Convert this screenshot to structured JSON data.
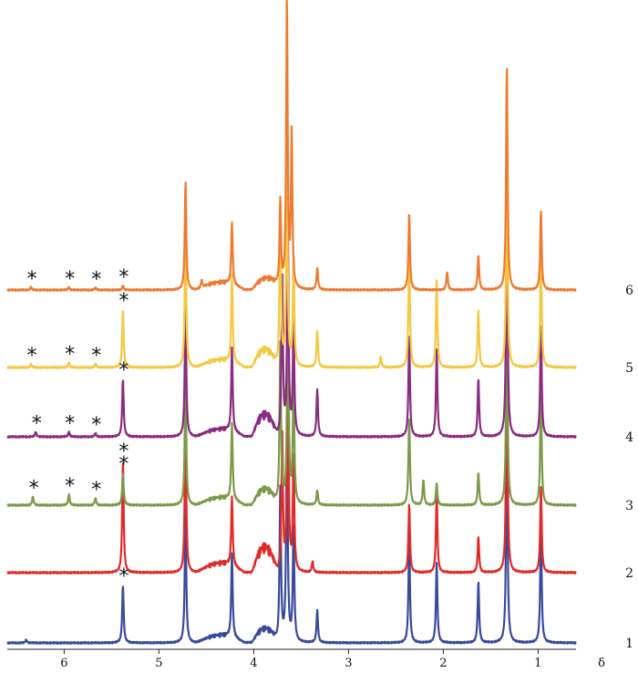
{
  "chart_data": {
    "type": "line",
    "title": "",
    "xlabel": "δ",
    "ylabel": "",
    "x_reversed": true,
    "xlim": [
      6.6,
      0.6
    ],
    "x_ticks": [
      {
        "value": 6,
        "label": "6"
      },
      {
        "value": 5,
        "label": "5"
      },
      {
        "value": 4,
        "label": "4"
      },
      {
        "value": 3,
        "label": "3"
      },
      {
        "value": 2,
        "label": "2"
      },
      {
        "value": 1,
        "label": "1"
      }
    ],
    "grid": false,
    "legend": "none",
    "series": [
      {
        "label": "1",
        "color": "#3a4a9a",
        "peaks": [
          [
            6.4,
            0.04
          ],
          [
            5.38,
            0.8
          ],
          [
            4.72,
            1.85
          ],
          [
            4.23,
            1.15
          ],
          [
            3.72,
            2.1
          ],
          [
            3.65,
            3.1
          ],
          [
            3.58,
            1.6
          ],
          [
            3.33,
            0.45
          ],
          [
            2.36,
            1.45
          ],
          [
            2.07,
            1.1
          ],
          [
            1.63,
            0.85
          ],
          [
            1.33,
            3.0
          ],
          [
            0.97,
            1.6
          ]
        ],
        "humps": [
          [
            4.1,
            4.6,
            0.12
          ],
          [
            3.75,
            4.02,
            0.22
          ]
        ],
        "asterisks": [
          5.38
        ]
      },
      {
        "label": "2",
        "color": "#e02a28",
        "peaks": [
          [
            5.38,
            1.55
          ],
          [
            4.72,
            2.15
          ],
          [
            4.23,
            0.95
          ],
          [
            3.7,
            1.9
          ],
          [
            3.64,
            3.0
          ],
          [
            3.58,
            1.6
          ],
          [
            3.38,
            0.15
          ],
          [
            2.36,
            0.95
          ],
          [
            2.07,
            1.1
          ],
          [
            1.63,
            0.5
          ],
          [
            1.33,
            3.2
          ],
          [
            0.97,
            1.2
          ]
        ],
        "humps": [
          [
            4.1,
            4.6,
            0.15
          ],
          [
            3.75,
            4.02,
            0.4
          ]
        ],
        "asterisks": [
          5.38
        ]
      },
      {
        "label": "3",
        "color": "#7a9a48",
        "peaks": [
          [
            6.33,
            0.12
          ],
          [
            5.95,
            0.15
          ],
          [
            5.67,
            0.1
          ],
          [
            5.38,
            0.45
          ],
          [
            4.72,
            1.8
          ],
          [
            4.23,
            1.05
          ],
          [
            3.72,
            2.2
          ],
          [
            3.64,
            3.1
          ],
          [
            3.58,
            1.75
          ],
          [
            3.33,
            0.2
          ],
          [
            2.36,
            1.2
          ],
          [
            2.21,
            0.35
          ],
          [
            2.07,
            0.3
          ],
          [
            1.63,
            0.45
          ],
          [
            1.33,
            2.8
          ],
          [
            0.97,
            1.55
          ]
        ],
        "humps": [
          [
            4.1,
            4.6,
            0.12
          ],
          [
            3.75,
            4.02,
            0.25
          ]
        ],
        "asterisks": [
          6.33,
          5.95,
          5.67,
          5.38
        ]
      },
      {
        "label": "4",
        "color": "#8a2a80",
        "peaks": [
          [
            6.3,
            0.07
          ],
          [
            5.95,
            0.07
          ],
          [
            5.67,
            0.05
          ],
          [
            5.38,
            0.8
          ],
          [
            4.72,
            1.85
          ],
          [
            4.23,
            1.15
          ],
          [
            3.7,
            2.2
          ],
          [
            3.64,
            2.8
          ],
          [
            3.58,
            1.6
          ],
          [
            3.33,
            0.65
          ],
          [
            2.36,
            1.4
          ],
          [
            2.07,
            1.2
          ],
          [
            1.63,
            0.8
          ],
          [
            1.33,
            3.5
          ],
          [
            0.97,
            1.55
          ]
        ],
        "humps": [
          [
            4.1,
            4.6,
            0.12
          ],
          [
            3.75,
            4.02,
            0.35
          ]
        ],
        "asterisks": [
          6.3,
          5.95,
          5.67,
          5.38
        ]
      },
      {
        "label": "5",
        "color": "#f5c842",
        "peaks": [
          [
            6.35,
            0.05
          ],
          [
            5.95,
            0.07
          ],
          [
            5.67,
            0.05
          ],
          [
            5.38,
            0.8
          ],
          [
            4.72,
            2.0
          ],
          [
            4.23,
            1.2
          ],
          [
            3.72,
            2.2
          ],
          [
            3.65,
            2.8
          ],
          [
            3.58,
            1.5
          ],
          [
            3.33,
            0.5
          ],
          [
            2.66,
            0.15
          ],
          [
            2.36,
            1.6
          ],
          [
            2.07,
            1.2
          ],
          [
            1.63,
            0.8
          ],
          [
            1.33,
            3.0
          ],
          [
            0.97,
            1.6
          ]
        ],
        "humps": [
          [
            4.1,
            4.6,
            0.12
          ],
          [
            3.75,
            4.02,
            0.28
          ]
        ],
        "asterisks": [
          6.35,
          5.95,
          5.67,
          5.38
        ]
      },
      {
        "label": "6",
        "color": "#ee7a30",
        "peaks": [
          [
            6.35,
            0.04
          ],
          [
            5.95,
            0.04
          ],
          [
            5.67,
            0.03
          ],
          [
            5.38,
            0.06
          ],
          [
            4.72,
            1.5
          ],
          [
            4.55,
            0.1
          ],
          [
            4.23,
            0.85
          ],
          [
            3.72,
            1.2
          ],
          [
            3.65,
            4.0
          ],
          [
            3.6,
            2.1
          ],
          [
            3.33,
            0.3
          ],
          [
            2.36,
            1.05
          ],
          [
            1.96,
            0.25
          ],
          [
            1.63,
            0.48
          ],
          [
            1.33,
            3.1
          ],
          [
            0.97,
            1.1
          ]
        ],
        "humps": [
          [
            4.1,
            4.6,
            0.12
          ],
          [
            3.72,
            4.02,
            0.18
          ]
        ],
        "asterisks": [
          6.35,
          5.95,
          5.67,
          5.38
        ]
      }
    ]
  }
}
